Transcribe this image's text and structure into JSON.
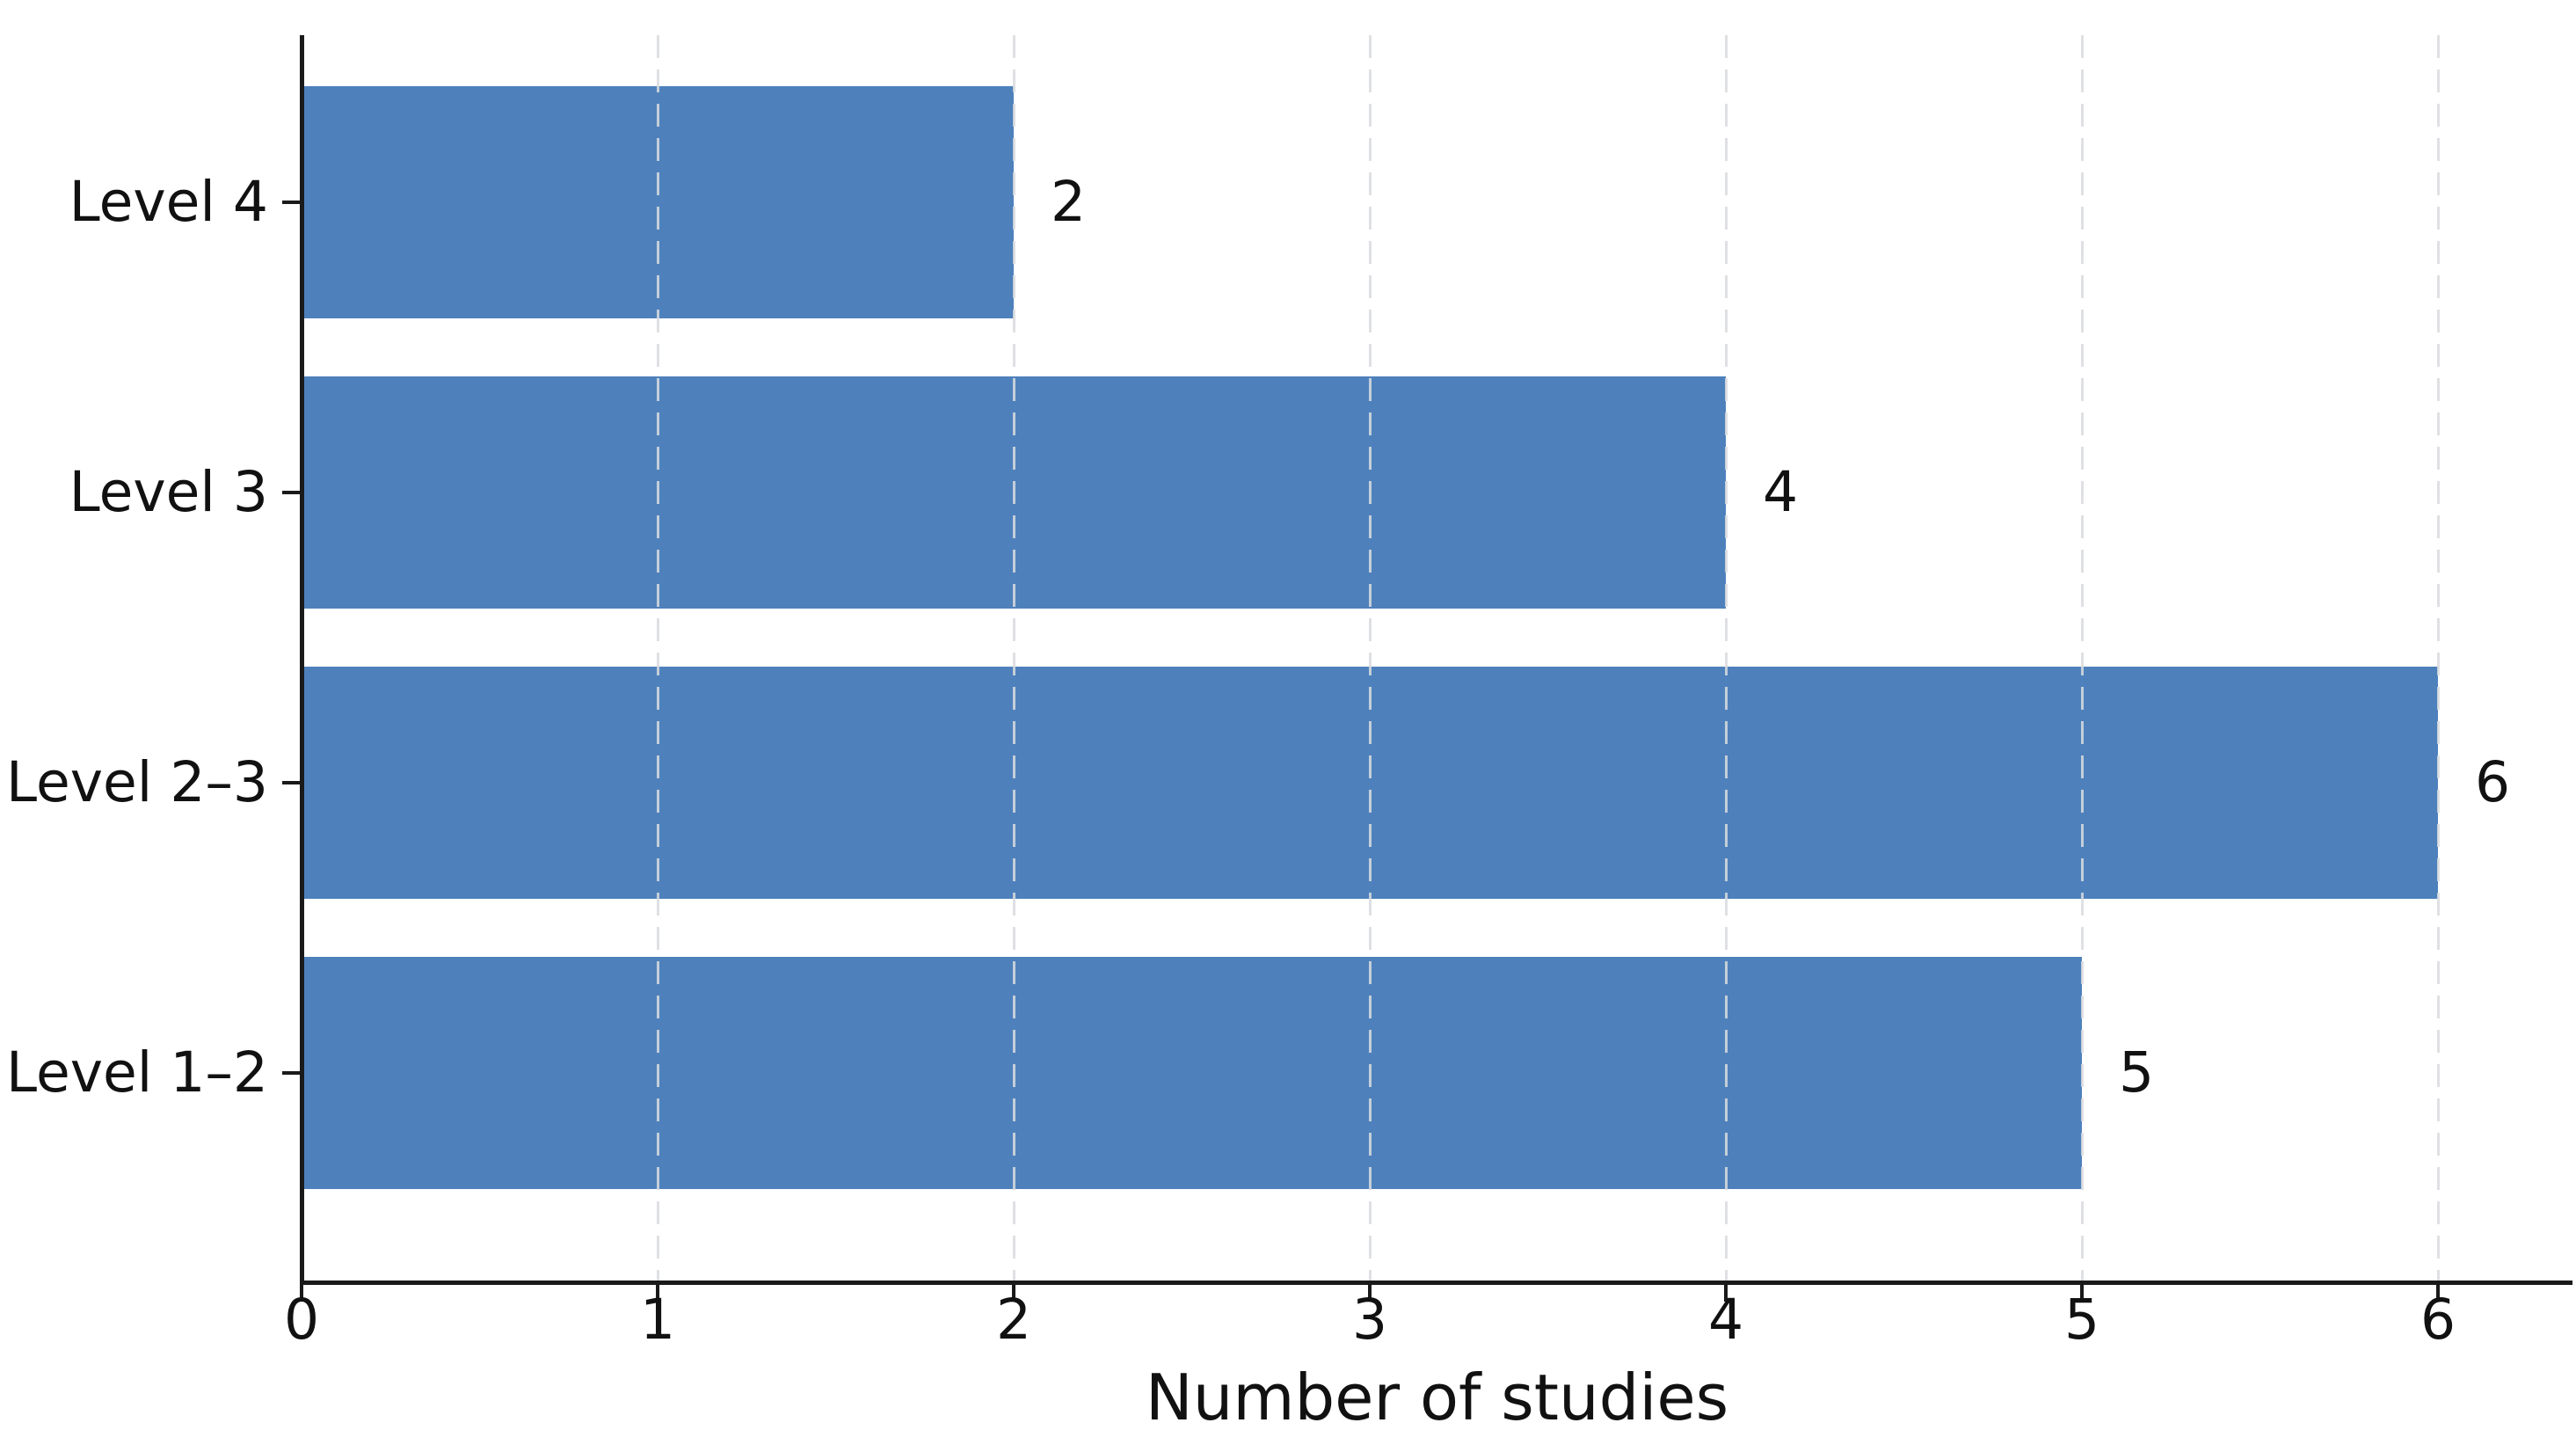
{
  "chart_data": {
    "type": "bar",
    "orientation": "horizontal",
    "title": "",
    "xlabel": "Number of studies",
    "ylabel": "",
    "categories": [
      "Level 4",
      "Level 3",
      "Level 2–3",
      "Level 1–2"
    ],
    "values": [
      2,
      4,
      6,
      5
    ],
    "bar_value_labels": [
      "2",
      "4",
      "6",
      "5"
    ],
    "xticks": [
      "0",
      "1",
      "2",
      "3",
      "4",
      "5",
      "6"
    ],
    "xtick_values": [
      0,
      1,
      2,
      3,
      4,
      5,
      6
    ],
    "xlim": [
      0,
      6.38
    ],
    "grid": "vertical dashed at each x tick",
    "legend_position": "none",
    "colors": {
      "bar": "#4e81bc",
      "grid": "#d9dbde",
      "axis": "#1a1a1a",
      "text": "#111111",
      "background": "#ffffff"
    }
  }
}
